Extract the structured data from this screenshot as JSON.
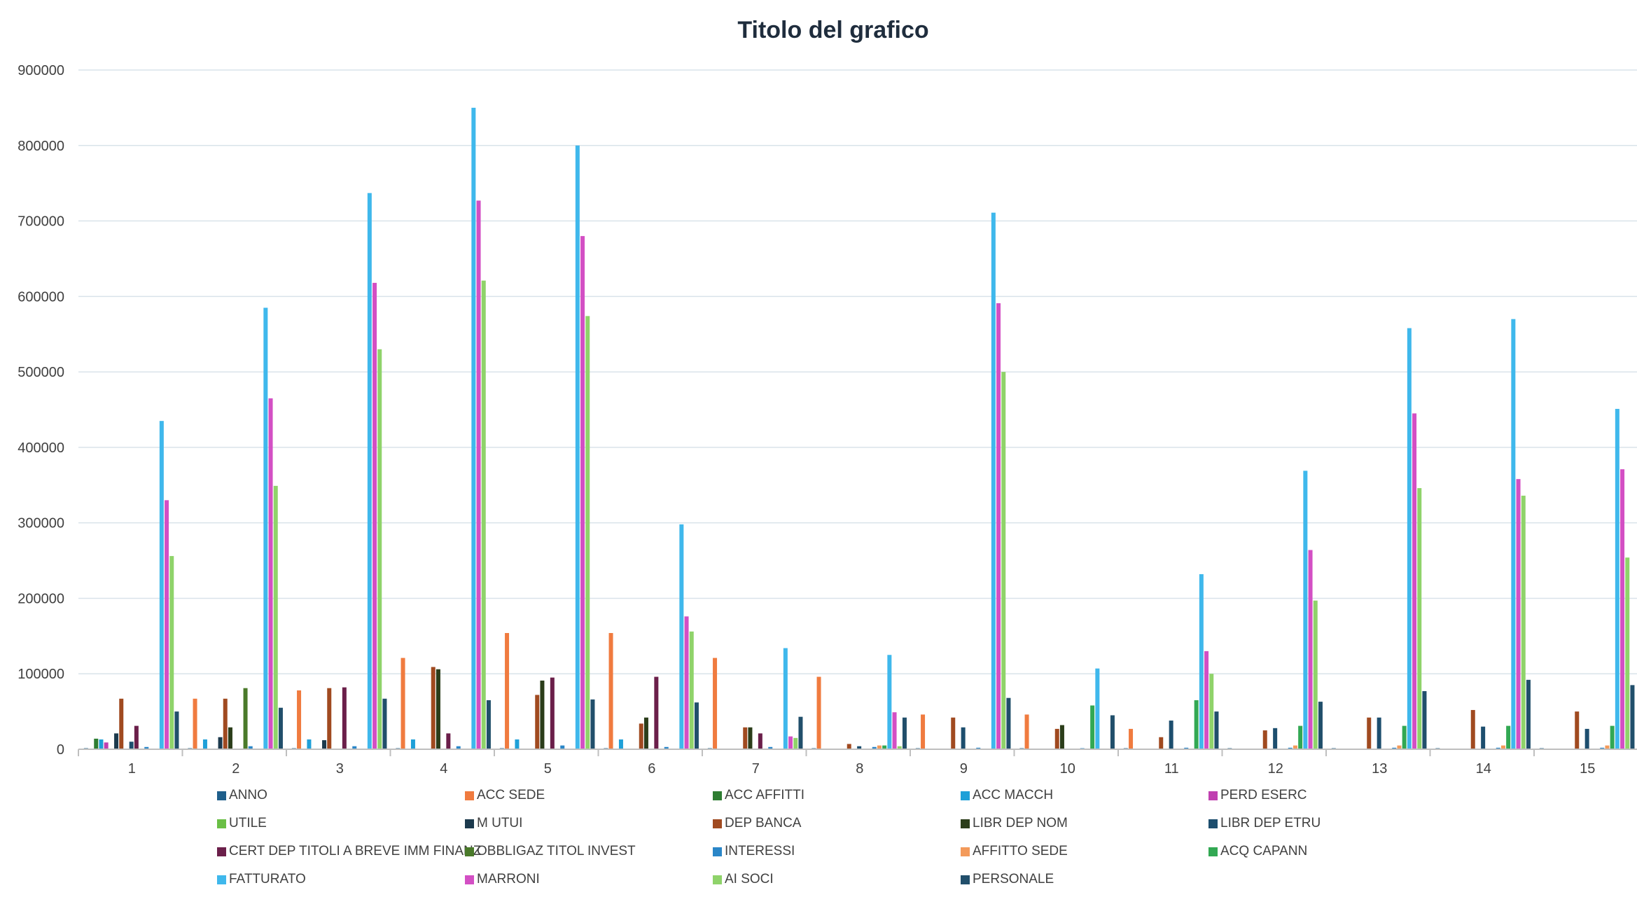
{
  "chart_data": {
    "type": "bar",
    "title": "Titolo del grafico",
    "xlabel": "",
    "ylabel": "",
    "ylim": [
      0,
      900000
    ],
    "y_ticks": [
      "0",
      "100000",
      "200000",
      "300000",
      "400000",
      "500000",
      "600000",
      "700000",
      "800000",
      "900000"
    ],
    "categories": [
      "1",
      "2",
      "3",
      "4",
      "5",
      "6",
      "7",
      "8",
      "9",
      "10",
      "11",
      "12",
      "13",
      "14",
      "15"
    ],
    "grid": true,
    "legend_position": "bottom",
    "series": [
      {
        "name": "ANNO",
        "color": "#1f5f8b",
        "values": [
          1,
          2,
          3,
          4,
          5,
          6,
          7,
          8,
          9,
          10,
          11,
          12,
          13,
          14,
          15
        ]
      },
      {
        "name": "ACC SEDE",
        "color": "#f07b3f",
        "values": [
          0,
          67000,
          78000,
          121000,
          154000,
          154000,
          121000,
          96000,
          46000,
          46000,
          27000,
          0,
          0,
          0,
          0
        ]
      },
      {
        "name": "ACC AFFITTI",
        "color": "#2e7d32",
        "values": [
          14000,
          0,
          0,
          0,
          0,
          0,
          0,
          0,
          0,
          0,
          0,
          0,
          0,
          0,
          0
        ]
      },
      {
        "name": "ACC MACCH",
        "color": "#1fa0d8",
        "values": [
          13000,
          13000,
          13000,
          13000,
          13000,
          13000,
          0,
          0,
          0,
          0,
          0,
          0,
          0,
          0,
          0
        ]
      },
      {
        "name": "PERD ESERC",
        "color": "#c040b0",
        "values": [
          9000,
          0,
          0,
          0,
          0,
          0,
          0,
          0,
          0,
          0,
          0,
          0,
          0,
          0,
          0
        ]
      },
      {
        "name": "UTILE",
        "color": "#6abf45",
        "values": [
          0,
          0,
          0,
          0,
          0,
          0,
          0,
          0,
          0,
          0,
          0,
          0,
          0,
          0,
          0
        ]
      },
      {
        "name": "M UTUI",
        "color": "#1c3a4d",
        "values": [
          21000,
          16000,
          12000,
          0,
          0,
          0,
          0,
          0,
          0,
          0,
          0,
          0,
          0,
          0,
          0
        ]
      },
      {
        "name": "DEP BANCA",
        "color": "#a04a20",
        "values": [
          67000,
          67000,
          81000,
          109000,
          72000,
          34000,
          29000,
          7000,
          42000,
          27000,
          16000,
          25000,
          42000,
          52000,
          50000
        ]
      },
      {
        "name": "LIBR DEP NOM",
        "color": "#2b3d1a",
        "values": [
          0,
          29000,
          0,
          106000,
          91000,
          42000,
          29000,
          0,
          0,
          32000,
          0,
          0,
          0,
          0,
          0
        ]
      },
      {
        "name": "LIBR DEP ETRU",
        "color": "#1d4e6e",
        "values": [
          10000,
          0,
          0,
          0,
          0,
          0,
          0,
          4000,
          29000,
          0,
          38000,
          28000,
          42000,
          30000,
          27000
        ]
      },
      {
        "name": "CERT DEP TITOLI  A BREVE IMM FINANZ",
        "color": "#6b1f4a",
        "values": [
          31000,
          0,
          82000,
          21000,
          95000,
          96000,
          21000,
          0,
          0,
          0,
          0,
          0,
          0,
          0,
          0
        ]
      },
      {
        "name": "OBBLIGAZ TITOL INVEST",
        "color": "#4a7a2a",
        "values": [
          0,
          81000,
          0,
          0,
          0,
          0,
          0,
          0,
          0,
          0,
          0,
          0,
          0,
          0,
          0
        ]
      },
      {
        "name": "INTERESSI",
        "color": "#2a86c8",
        "values": [
          3000,
          4000,
          4000,
          4000,
          5000,
          3000,
          3000,
          3000,
          2000,
          1000,
          2000,
          2000,
          2000,
          2000,
          2000
        ]
      },
      {
        "name": "AFFITTO SEDE",
        "color": "#f39a5a",
        "values": [
          0,
          0,
          0,
          0,
          0,
          0,
          0,
          5000,
          0,
          0,
          0,
          5000,
          5000,
          5000,
          5000
        ]
      },
      {
        "name": "ACQ CAPANN",
        "color": "#32a853",
        "values": [
          0,
          0,
          0,
          0,
          0,
          0,
          0,
          5000,
          0,
          58000,
          65000,
          31000,
          31000,
          31000,
          31000
        ]
      },
      {
        "name": "FATTURATO",
        "color": "#3fb8ec",
        "values": [
          435000,
          585000,
          737000,
          850000,
          800000,
          298000,
          134000,
          125000,
          711000,
          107000,
          232000,
          369000,
          558000,
          570000,
          451000
        ]
      },
      {
        "name": "MARRONI",
        "color": "#d34fc4",
        "values": [
          330000,
          465000,
          618000,
          727000,
          680000,
          176000,
          17000,
          49000,
          591000,
          0,
          130000,
          264000,
          445000,
          358000,
          371000
        ]
      },
      {
        "name": "AI SOCI",
        "color": "#8fd36a",
        "values": [
          256000,
          349000,
          530000,
          621000,
          574000,
          156000,
          15000,
          4000,
          500000,
          0,
          100000,
          197000,
          346000,
          336000,
          254000
        ]
      },
      {
        "name": "PERSONALE",
        "color": "#214f6b",
        "values": [
          50000,
          55000,
          67000,
          65000,
          66000,
          62000,
          43000,
          42000,
          68000,
          45000,
          50000,
          63000,
          77000,
          92000,
          85000
        ]
      }
    ]
  }
}
